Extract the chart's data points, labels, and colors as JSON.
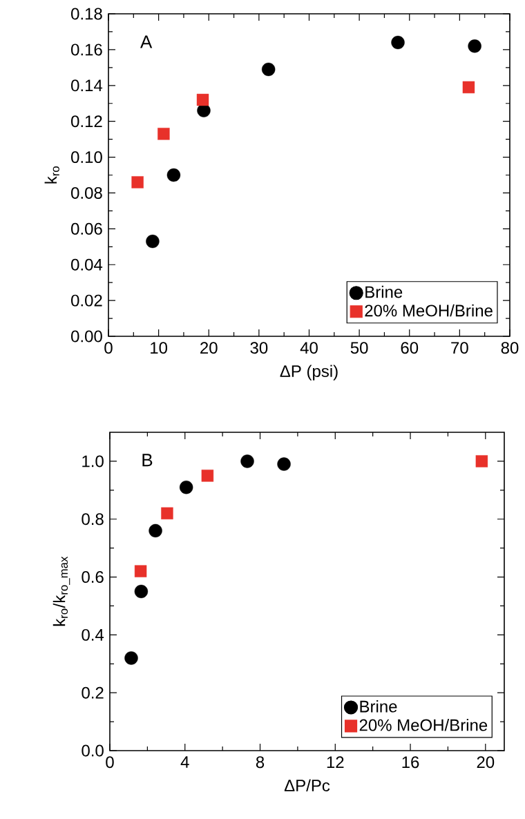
{
  "chart_data": [
    {
      "type": "scatter",
      "xlabel": "ΔP (psi)",
      "ylabel": "k$_{ro}$",
      "annotations": [
        "A"
      ],
      "xlim": [
        0,
        80
      ],
      "ylim": [
        0,
        0.18
      ],
      "xticks": [
        0,
        10,
        20,
        30,
        40,
        50,
        60,
        70,
        80
      ],
      "yticks": [
        {
          "value": 0,
          "label": "0.00"
        },
        {
          "value": 0.02,
          "label": "0.02"
        },
        {
          "value": 0.04,
          "label": "0.04"
        },
        {
          "value": 0.06,
          "label": "0.06"
        },
        {
          "value": 0.08,
          "label": "0.08"
        },
        {
          "value": 0.1,
          "label": "0.10"
        },
        {
          "value": 0.12,
          "label": "0.12"
        },
        {
          "value": 0.14,
          "label": "0.14"
        },
        {
          "value": 0.16,
          "label": "0.16"
        },
        {
          "value": 0.18,
          "label": "0.18"
        }
      ],
      "legend": "bottom right",
      "grid": false,
      "series": [
        {
          "name": "Brine",
          "color": "#000000",
          "marker": "circle",
          "x": [
            8.8,
            13.0,
            19.0,
            31.9,
            57.7,
            73.0
          ],
          "values": [
            0.053,
            0.09,
            0.126,
            0.149,
            0.164,
            0.162
          ]
        },
        {
          "name": "20% MeOH/Brine",
          "color": "#e8312a",
          "marker": "square",
          "x": [
            5.8,
            11.0,
            18.8,
            71.8
          ],
          "values": [
            0.086,
            0.113,
            0.132,
            0.139
          ]
        }
      ]
    },
    {
      "type": "scatter",
      "xlabel": "ΔP/Pc",
      "ylabel": "k$_{ro}$/k$_{ro_max}$",
      "annotations": [
        "B"
      ],
      "xlim": [
        0,
        21
      ],
      "ylim": [
        0,
        1.1
      ],
      "xticks": [
        0,
        4,
        8,
        12,
        16,
        20
      ],
      "yticks": [
        {
          "value": 0,
          "label": "0.0"
        },
        {
          "value": 0.2,
          "label": "0.2"
        },
        {
          "value": 0.4,
          "label": "0.4"
        },
        {
          "value": 0.6,
          "label": "0.6"
        },
        {
          "value": 0.8,
          "label": "0.8"
        },
        {
          "value": 1.0,
          "label": "1.0"
        }
      ],
      "legend": "bottom right",
      "grid": false,
      "series": [
        {
          "name": "Brine",
          "color": "#000000",
          "marker": "circle",
          "x": [
            1.14,
            1.67,
            2.43,
            4.07,
            7.32,
            9.27
          ],
          "values": [
            0.32,
            0.55,
            0.76,
            0.91,
            1.0,
            0.99
          ]
        },
        {
          "name": "20% MeOH/Brine",
          "color": "#e8312a",
          "marker": "square",
          "x": [
            1.64,
            3.05,
            5.2,
            19.8
          ],
          "values": [
            0.62,
            0.82,
            0.95,
            1.0
          ]
        }
      ]
    }
  ]
}
